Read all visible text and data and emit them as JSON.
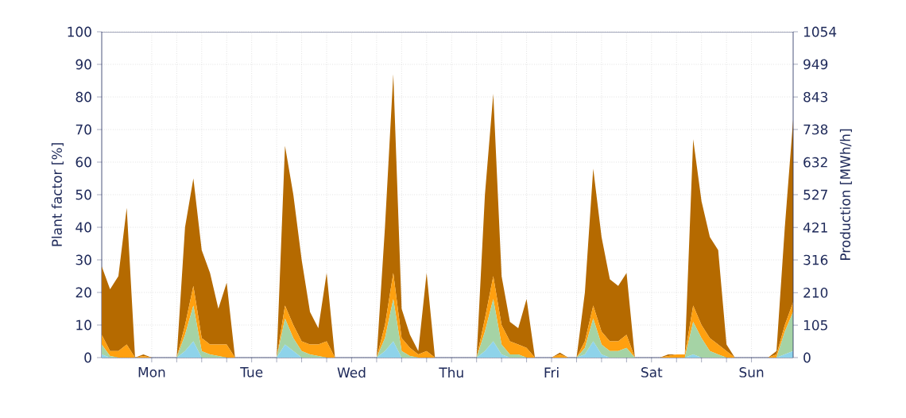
{
  "chart_data": {
    "type": "area",
    "stacked": true,
    "grid": true,
    "ylabel": "Plant factor [%]",
    "y2label": "Production [MWh/h]",
    "categories": [
      null,
      null,
      null,
      null,
      null,
      null,
      "Mon",
      null,
      null,
      null,
      null,
      null,
      null,
      null,
      null,
      null,
      null,
      null,
      "Tue",
      null,
      null,
      null,
      null,
      null,
      null,
      null,
      null,
      null,
      null,
      null,
      "Wed",
      null,
      null,
      null,
      null,
      null,
      null,
      null,
      null,
      null,
      null,
      null,
      "Thu",
      null,
      null,
      null,
      null,
      null,
      null,
      null,
      null,
      null,
      null,
      null,
      "Fri",
      null,
      null,
      null,
      null,
      null,
      null,
      null,
      null,
      null,
      null,
      null,
      "Sat",
      null,
      null,
      null,
      null,
      null,
      null,
      null,
      null,
      null,
      null,
      null,
      "Sun",
      null,
      null,
      null,
      null,
      null
    ],
    "series": [
      {
        "color": "#8ed3ea",
        "values": [
          1,
          0,
          0,
          0,
          0,
          0,
          0,
          0,
          0,
          0,
          2,
          5,
          0,
          0,
          0,
          0,
          0,
          0,
          0,
          0,
          0,
          0,
          4,
          2,
          0,
          0,
          0,
          0,
          0,
          0,
          0,
          0,
          0,
          0,
          2,
          5,
          0,
          0,
          0,
          0,
          0,
          0,
          0,
          0,
          0,
          0,
          2,
          5,
          1,
          0,
          0,
          0,
          0,
          0,
          0,
          0,
          0,
          0,
          1,
          5,
          1,
          0,
          0,
          0,
          0,
          0,
          0,
          0,
          0,
          0,
          0,
          1,
          0,
          0,
          0,
          0,
          0,
          0,
          0,
          0,
          0,
          0,
          1,
          2
        ]
      },
      {
        "color": "#a5d3a5",
        "values": [
          3,
          0.5,
          0,
          0,
          0,
          0,
          0,
          0,
          0,
          0,
          5,
          11,
          2,
          1,
          0.5,
          0,
          0,
          0,
          0,
          0,
          0,
          0,
          8,
          4,
          2,
          1,
          0.5,
          0,
          0,
          0,
          0,
          0,
          0,
          0,
          4,
          13,
          2,
          0.5,
          0,
          0,
          0,
          0,
          0,
          0,
          0,
          0,
          6,
          13,
          3,
          1,
          1,
          0,
          0,
          0,
          0,
          0,
          0,
          0,
          2,
          7,
          3,
          2,
          2,
          3,
          0,
          0,
          0,
          0,
          0,
          0,
          0,
          10,
          6,
          2,
          1,
          0,
          0,
          0,
          0,
          0,
          0,
          0,
          7,
          12
        ]
      },
      {
        "color": "#ffa010",
        "values": [
          3,
          1.5,
          2,
          4,
          0,
          0.5,
          0,
          0,
          0,
          0,
          3,
          6,
          4,
          3,
          3.5,
          4,
          0,
          0,
          0,
          0,
          0,
          0,
          4,
          4,
          3,
          3,
          3.5,
          5,
          0,
          0,
          0,
          0,
          0,
          0,
          4,
          8,
          4,
          2.5,
          1,
          2,
          0,
          0,
          0,
          0,
          0,
          0,
          4,
          7,
          6,
          4,
          3,
          3,
          0,
          0,
          0,
          1,
          0,
          0,
          2,
          4,
          4,
          3,
          3,
          4,
          0,
          0,
          0,
          0,
          0.5,
          1,
          1,
          5,
          4,
          4,
          3,
          2,
          0,
          0,
          0,
          0,
          0,
          1,
          2,
          3
        ]
      },
      {
        "color": "#b56a00",
        "values": [
          21,
          19,
          23,
          42,
          0,
          0.5,
          0,
          0,
          0,
          0,
          30,
          33,
          27,
          22,
          11,
          19,
          0,
          0,
          0,
          0,
          0,
          0,
          49,
          40,
          25,
          10,
          5,
          21,
          0,
          0,
          0,
          0,
          0,
          0,
          30,
          61,
          9,
          4,
          1,
          24,
          0,
          0,
          0,
          0,
          0,
          0,
          38,
          56,
          15,
          6,
          5,
          15,
          0,
          0,
          0,
          0.5,
          0,
          0,
          15,
          42,
          29,
          19,
          17,
          19,
          0,
          0,
          0,
          0,
          0.5,
          0,
          0,
          51,
          38,
          31,
          29,
          2,
          0,
          0,
          0,
          0,
          0,
          1,
          30,
          56
        ]
      }
    ],
    "ylim": [
      0,
      100
    ],
    "yticks": [
      0,
      10,
      20,
      30,
      40,
      50,
      60,
      70,
      80,
      90,
      100
    ],
    "y2lim": [
      0,
      1054
    ],
    "y2ticks": [
      0,
      105,
      210,
      316,
      421,
      527,
      632,
      738,
      843,
      949,
      1054
    ]
  }
}
